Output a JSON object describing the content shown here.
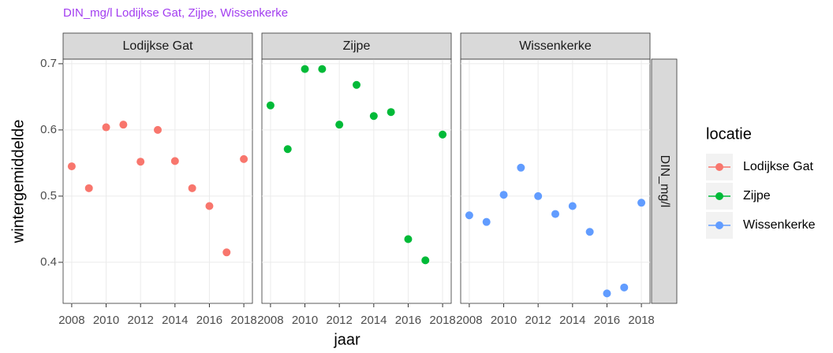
{
  "chart_data": {
    "type": "scatter",
    "title": "DIN_mg/l Lodijkse Gat, Zijpe, Wissenkerke",
    "xlabel": "jaar",
    "ylabel": "wintergemiddelde",
    "strip_right": "DIN_mg/l",
    "legend_title": "locatie",
    "x": [
      2008,
      2009,
      2010,
      2011,
      2012,
      2013,
      2014,
      2015,
      2016,
      2017,
      2018
    ],
    "xlim": [
      2007.5,
      2018.5
    ],
    "xticks": [
      2008,
      2010,
      2012,
      2014,
      2016,
      2018
    ],
    "ylim": [
      0.338,
      0.707
    ],
    "yticks": [
      0.4,
      0.5,
      0.6,
      0.7
    ],
    "grid": true,
    "series": [
      {
        "name": "Lodijkse Gat",
        "color": "#f8766d",
        "values": [
          0.545,
          0.512,
          0.604,
          0.608,
          0.552,
          0.6,
          0.553,
          0.512,
          0.485,
          0.415,
          0.556
        ]
      },
      {
        "name": "Zijpe",
        "color": "#00ba38",
        "values": [
          0.637,
          0.571,
          0.692,
          0.692,
          0.608,
          0.668,
          0.621,
          0.627,
          0.435,
          0.403,
          0.593
        ]
      },
      {
        "name": "Wissenkerke",
        "color": "#619cff",
        "values": [
          0.471,
          0.461,
          0.502,
          0.543,
          0.5,
          0.473,
          0.485,
          0.446,
          0.353,
          0.362,
          0.49
        ]
      }
    ]
  }
}
